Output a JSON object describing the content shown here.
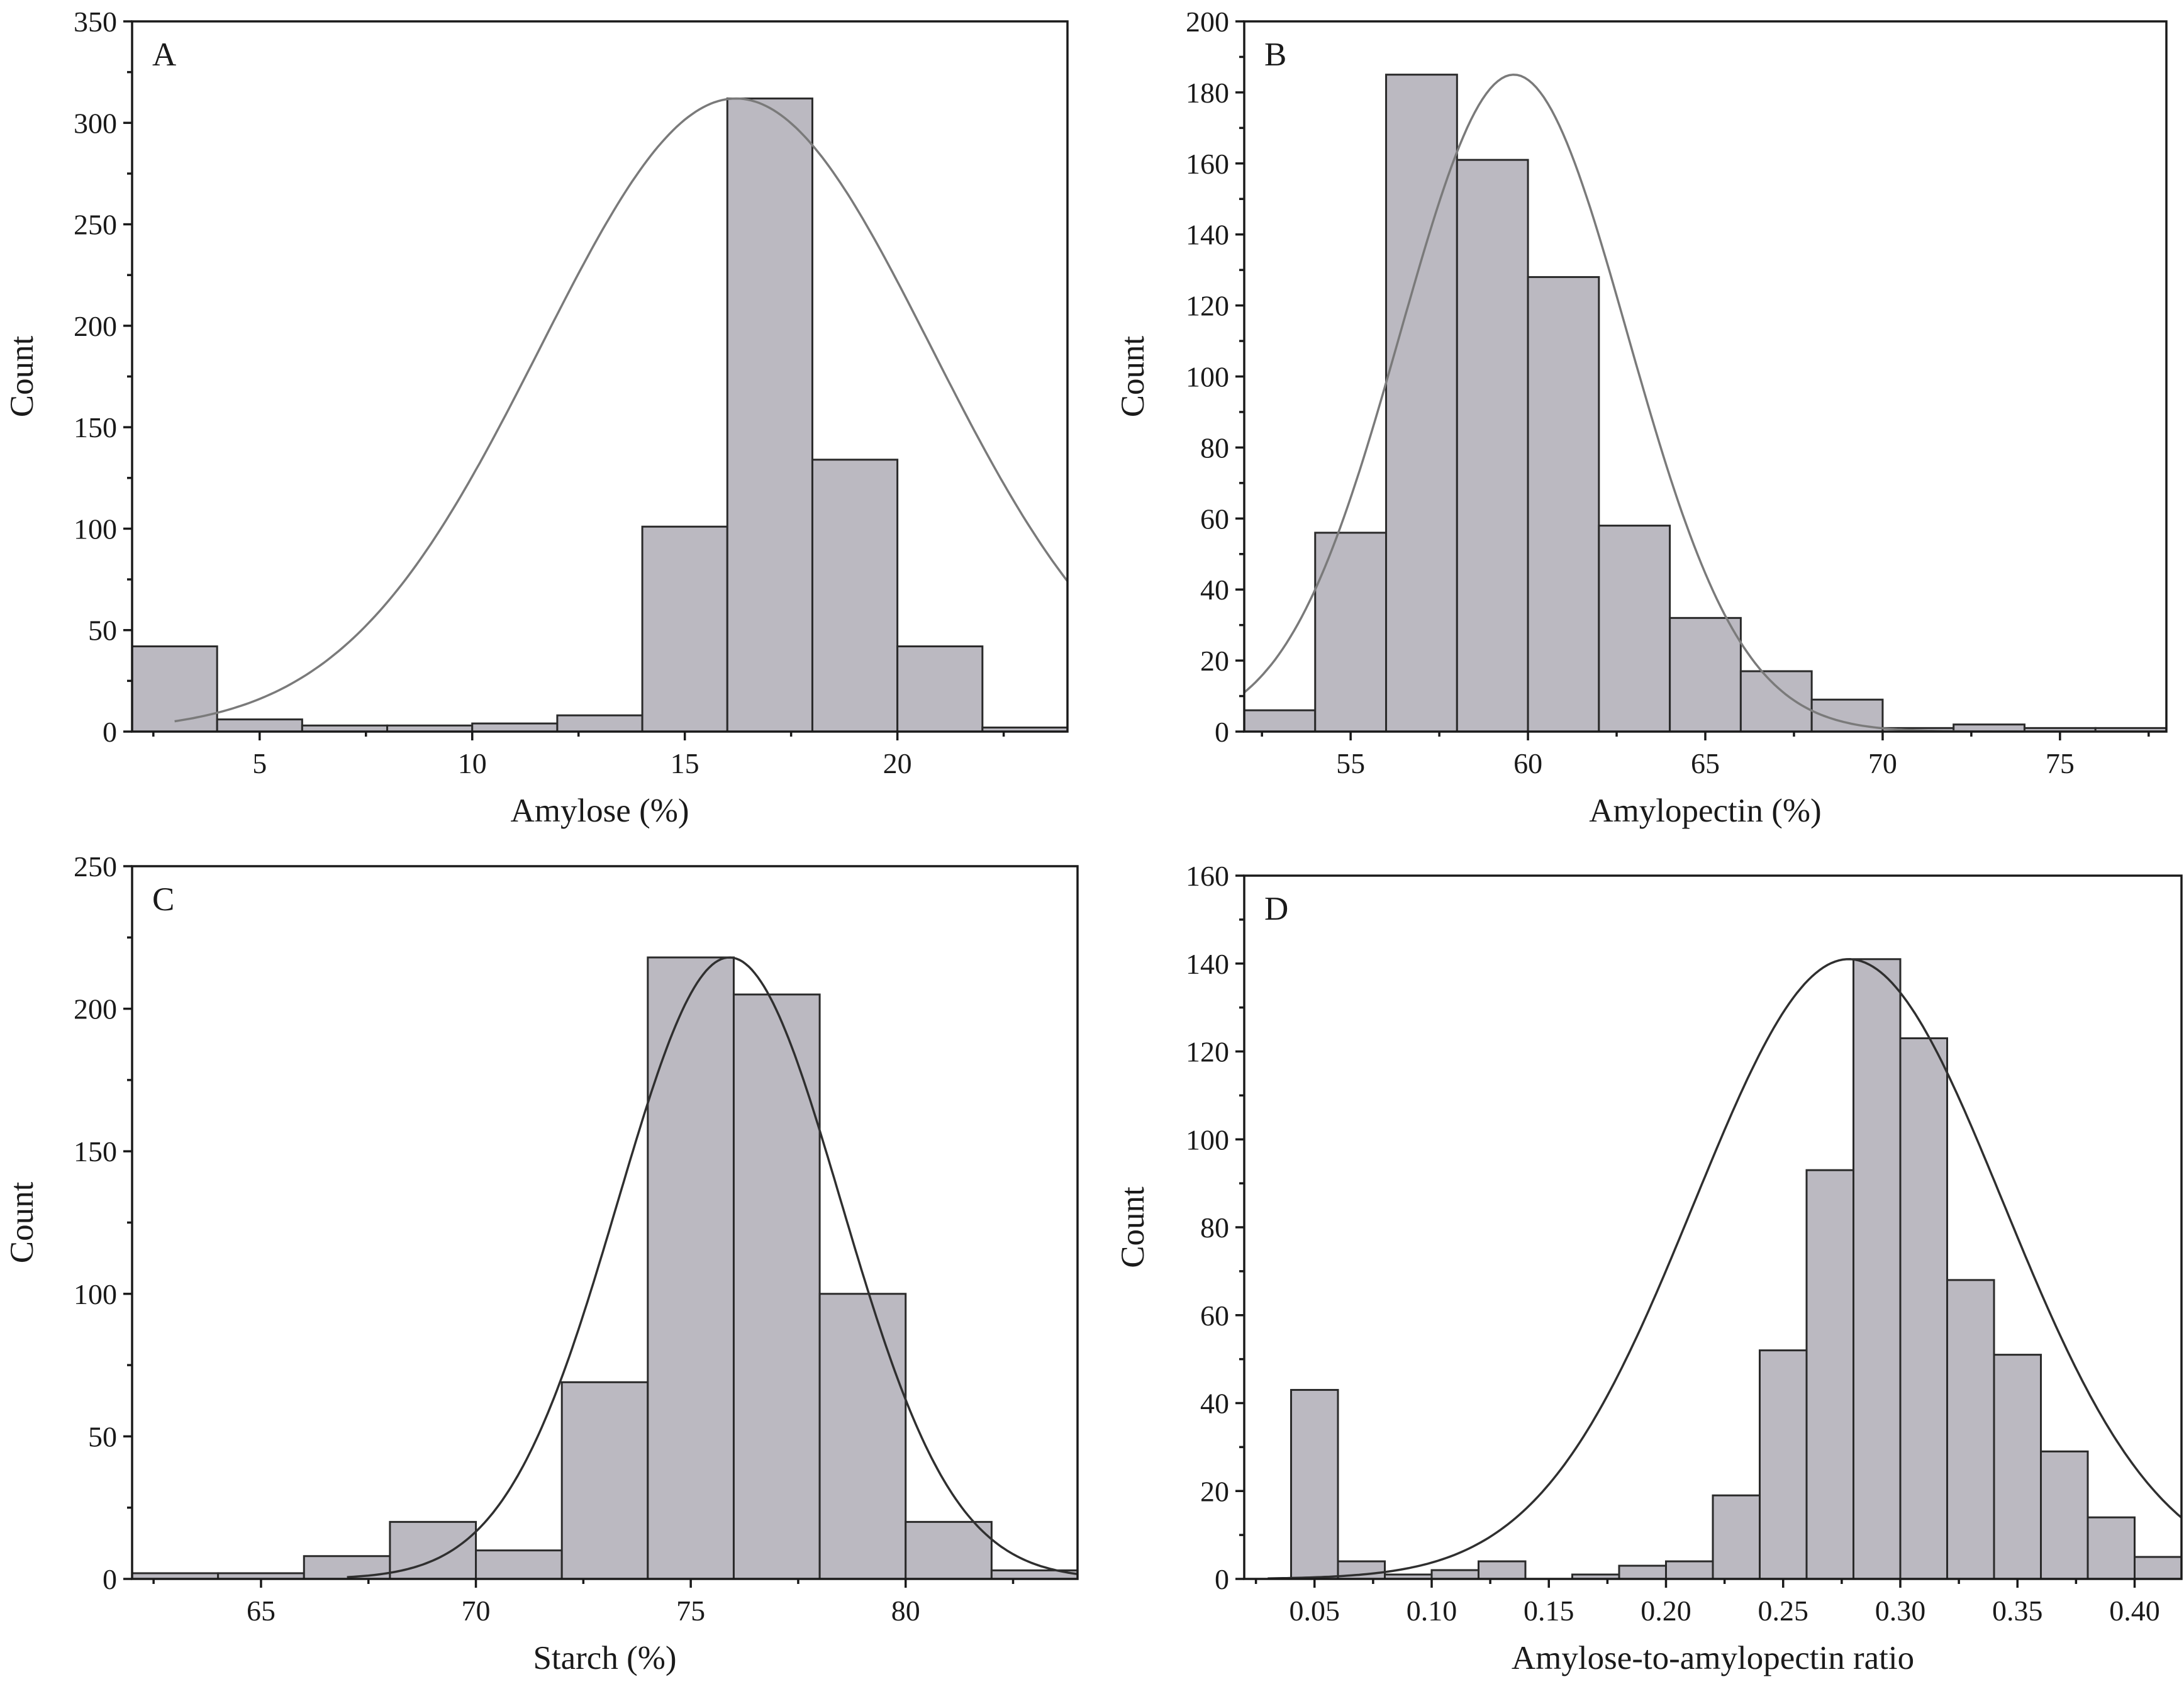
{
  "chart_data": [
    {
      "panel": "A",
      "type": "bar",
      "xlabel": "Amylose (%)",
      "ylabel": "Count",
      "xlim": [
        2,
        24
      ],
      "ylim": [
        0,
        350
      ],
      "xticks": [
        5,
        10,
        15,
        20
      ],
      "yticks": [
        0,
        50,
        100,
        150,
        200,
        250,
        300,
        350
      ],
      "bin_width": 2,
      "bins": [
        {
          "start": 2,
          "value": 42
        },
        {
          "start": 4,
          "value": 6
        },
        {
          "start": 6,
          "value": 3
        },
        {
          "start": 8,
          "value": 3
        },
        {
          "start": 10,
          "value": 4
        },
        {
          "start": 12,
          "value": 8
        },
        {
          "start": 14,
          "value": 101
        },
        {
          "start": 16,
          "value": 312
        },
        {
          "start": 18,
          "value": 134
        },
        {
          "start": 20,
          "value": 42
        },
        {
          "start": 22,
          "value": 2
        }
      ],
      "fit": {
        "type": "normal",
        "mean": 16.2,
        "sd": 4.6,
        "peak": 312,
        "x_range": [
          3,
          24
        ],
        "color": "#7a7a7a"
      }
    },
    {
      "panel": "B",
      "type": "bar",
      "xlabel": "Amylopectin (%)",
      "ylabel": "Count",
      "xlim": [
        52,
        78
      ],
      "ylim": [
        0,
        200
      ],
      "xticks": [
        55,
        60,
        65,
        70,
        75
      ],
      "yticks": [
        0,
        20,
        40,
        60,
        80,
        100,
        120,
        140,
        160,
        180,
        200
      ],
      "bin_width": 2,
      "bins": [
        {
          "start": 52,
          "value": 6
        },
        {
          "start": 54,
          "value": 56
        },
        {
          "start": 56,
          "value": 185
        },
        {
          "start": 58,
          "value": 161
        },
        {
          "start": 60,
          "value": 128
        },
        {
          "start": 62,
          "value": 58
        },
        {
          "start": 64,
          "value": 32
        },
        {
          "start": 66,
          "value": 17
        },
        {
          "start": 68,
          "value": 9
        },
        {
          "start": 70,
          "value": 1
        },
        {
          "start": 72,
          "value": 2
        },
        {
          "start": 74,
          "value": 1
        },
        {
          "start": 76,
          "value": 1
        }
      ],
      "fit": {
        "type": "normal",
        "mean": 59.6,
        "sd": 3.2,
        "peak": 185,
        "x_range": [
          52,
          78
        ],
        "color": "#7a7a7a"
      }
    },
    {
      "panel": "C",
      "type": "bar",
      "xlabel": "Starch (%)",
      "ylabel": "Count",
      "xlim": [
        62,
        84
      ],
      "ylim": [
        0,
        250
      ],
      "xticks": [
        65,
        70,
        75,
        80
      ],
      "yticks": [
        0,
        50,
        100,
        150,
        200,
        250
      ],
      "bin_width": 2,
      "bins": [
        {
          "start": 62,
          "value": 2
        },
        {
          "start": 64,
          "value": 2
        },
        {
          "start": 66,
          "value": 8
        },
        {
          "start": 68,
          "value": 20
        },
        {
          "start": 70,
          "value": 10
        },
        {
          "start": 72,
          "value": 69
        },
        {
          "start": 74,
          "value": 218
        },
        {
          "start": 76,
          "value": 205
        },
        {
          "start": 78,
          "value": 100
        },
        {
          "start": 80,
          "value": 20
        },
        {
          "start": 82,
          "value": 3
        }
      ],
      "fit": {
        "type": "normal",
        "mean": 75.9,
        "sd": 2.6,
        "peak": 218,
        "x_range": [
          67,
          84
        ],
        "color": "#2f2f2f"
      }
    },
    {
      "panel": "D",
      "type": "bar",
      "xlabel": "Amylose-to-amylopectin ratio",
      "ylabel": "Count",
      "xlim": [
        0.02,
        0.42
      ],
      "ylim": [
        0,
        160
      ],
      "xticks": [
        0.05,
        0.1,
        0.15,
        0.2,
        0.25,
        0.3,
        0.35,
        0.4
      ],
      "xtick_labels": [
        "0.05",
        "0.10",
        "0.15",
        "0.20",
        "0.25",
        "0.30",
        "0.35",
        "0.40"
      ],
      "yticks": [
        0,
        20,
        40,
        60,
        80,
        100,
        120,
        140,
        160
      ],
      "bin_width": 0.02,
      "bins": [
        {
          "start": 0.04,
          "value": 43
        },
        {
          "start": 0.06,
          "value": 4
        },
        {
          "start": 0.08,
          "value": 1
        },
        {
          "start": 0.1,
          "value": 2
        },
        {
          "start": 0.12,
          "value": 4
        },
        {
          "start": 0.14,
          "value": 0
        },
        {
          "start": 0.16,
          "value": 1
        },
        {
          "start": 0.18,
          "value": 3
        },
        {
          "start": 0.2,
          "value": 4
        },
        {
          "start": 0.22,
          "value": 19
        },
        {
          "start": 0.24,
          "value": 52
        },
        {
          "start": 0.26,
          "value": 93
        },
        {
          "start": 0.28,
          "value": 141
        },
        {
          "start": 0.3,
          "value": 123
        },
        {
          "start": 0.32,
          "value": 68
        },
        {
          "start": 0.34,
          "value": 51
        },
        {
          "start": 0.36,
          "value": 29
        },
        {
          "start": 0.38,
          "value": 14
        },
        {
          "start": 0.4,
          "value": 5
        }
      ],
      "fit": {
        "type": "normal",
        "mean": 0.278,
        "sd": 0.066,
        "peak": 141,
        "x_range": [
          0.03,
          0.42
        ],
        "color": "#2f2f2f"
      }
    }
  ]
}
